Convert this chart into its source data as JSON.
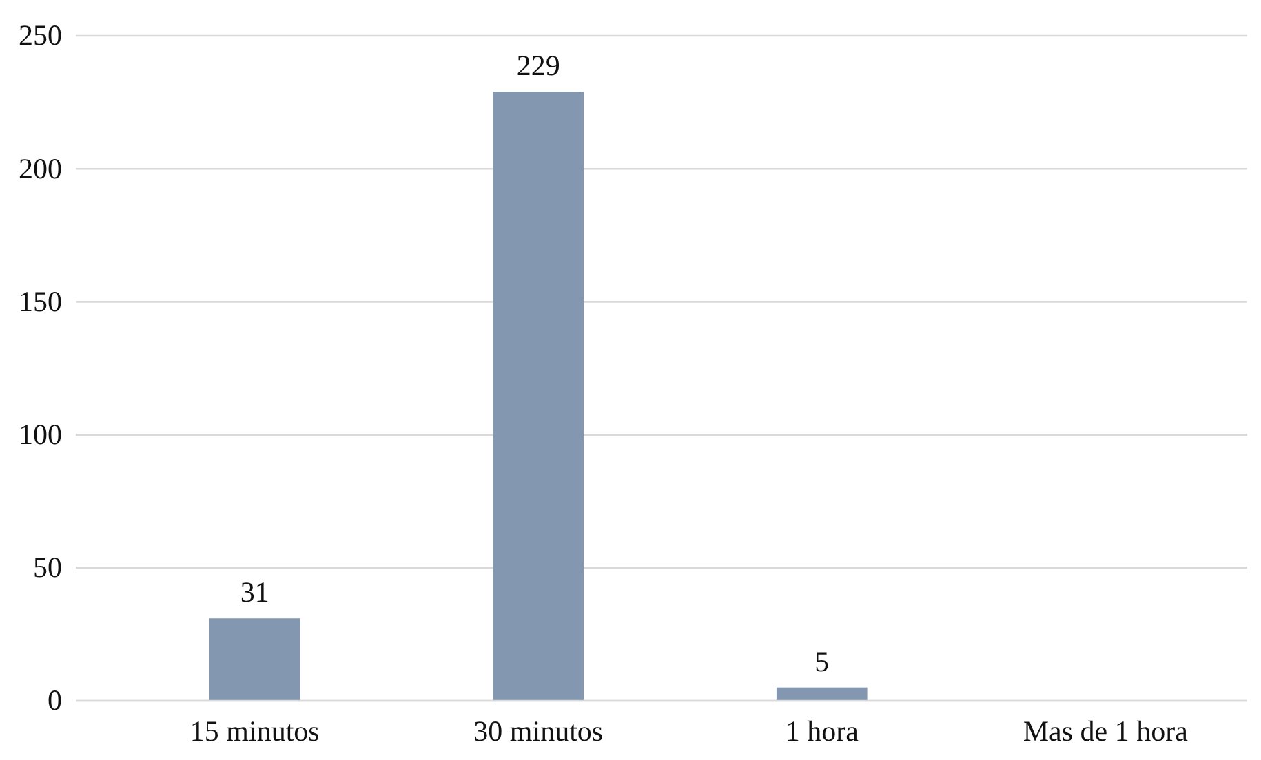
{
  "chart_data": {
    "type": "bar",
    "categories": [
      "15 minutos",
      "30 minutos",
      "1 hora",
      "Mas de 1 hora"
    ],
    "values": [
      31,
      229,
      5,
      0
    ],
    "value_labels": [
      "31",
      "229",
      "5",
      null
    ],
    "color": "#8497b0",
    "ylim": [
      0,
      250
    ],
    "yticks": [
      0,
      50,
      100,
      150,
      200,
      250
    ],
    "grid": "y"
  }
}
